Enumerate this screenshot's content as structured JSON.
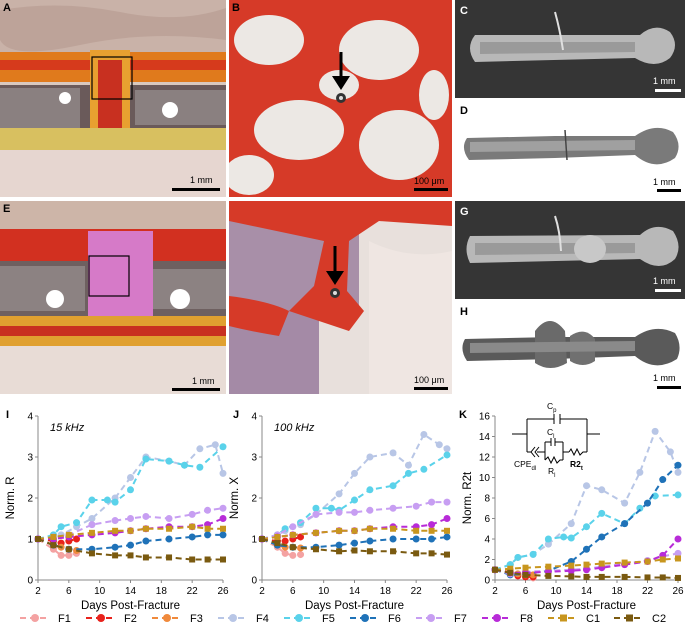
{
  "panels": {
    "A": {
      "label": "A",
      "scale": "1 mm"
    },
    "B": {
      "label": "B",
      "scale": "100 μm"
    },
    "C": {
      "label": "C",
      "scale": "1 mm"
    },
    "D": {
      "label": "D",
      "scale": "1 mm"
    },
    "E": {
      "label": "E",
      "scale": "1 mm"
    },
    "F": {
      "label": "",
      "scale": "100 μm"
    },
    "G": {
      "label": "G",
      "scale": "1 mm"
    },
    "H": {
      "label": "H",
      "scale": "1 mm"
    }
  },
  "colors": {
    "F1": "#f4a2a2",
    "F2": "#e8221c",
    "F3": "#f08a3c",
    "F4": "#b8c6e6",
    "F5": "#5ad2ea",
    "F6": "#1f72b8",
    "F7": "#c79ef2",
    "F8": "#b82bd8",
    "C1": "#c8961e",
    "C2": "#7a5a10"
  },
  "legend": [
    {
      "name": "F1",
      "style": "solid"
    },
    {
      "name": "F2",
      "style": "solid"
    },
    {
      "name": "F3",
      "style": "solid"
    },
    {
      "name": "F4",
      "style": "solid"
    },
    {
      "name": "F5",
      "style": "solid"
    },
    {
      "name": "F6",
      "style": "solid"
    },
    {
      "name": "F7",
      "style": "solid"
    },
    {
      "name": "F8",
      "style": "solid"
    },
    {
      "name": "C1",
      "style": "square"
    },
    {
      "name": "C2",
      "style": "square"
    }
  ],
  "circuit": {
    "cp": "C",
    "cp_sub": "p",
    "c1": "C",
    "c1_sub": "l",
    "cpe": "CPE",
    "cpe_sub": "dl",
    "r1": "R",
    "r1_sub": "l",
    "r2": "R2",
    "r2_sub": "t"
  },
  "chart_data": [
    {
      "panel": "I",
      "type": "line",
      "annotation": "15 kHz",
      "xlabel": "Days Post-Fracture",
      "ylabel": "Norm. R",
      "xlim": [
        2,
        26
      ],
      "ylim": [
        0,
        4
      ],
      "xticks": [
        2,
        6,
        10,
        14,
        18,
        22,
        26
      ],
      "yticks": [
        0,
        1,
        2,
        3,
        4
      ],
      "series": [
        {
          "name": "F1",
          "x": [
            2,
            4,
            5,
            6,
            7
          ],
          "y": [
            1.0,
            0.75,
            0.6,
            0.6,
            0.65
          ]
        },
        {
          "name": "F2",
          "x": [
            2,
            4,
            5,
            6,
            7
          ],
          "y": [
            1.0,
            0.95,
            0.9,
            0.95,
            1.0
          ]
        },
        {
          "name": "F3",
          "x": [
            2,
            4,
            5,
            6,
            7
          ],
          "y": [
            1.0,
            0.85,
            0.8,
            0.75,
            0.72
          ]
        },
        {
          "name": "F4",
          "x": [
            2,
            4,
            5,
            7,
            9,
            12,
            14,
            16,
            19,
            21,
            23,
            25,
            26
          ],
          "y": [
            1.0,
            1.0,
            1.1,
            1.3,
            1.5,
            2.0,
            2.5,
            3.0,
            2.9,
            2.8,
            3.2,
            3.3,
            2.6
          ]
        },
        {
          "name": "F5",
          "x": [
            2,
            4,
            5,
            7,
            9,
            11,
            12,
            14,
            16,
            19,
            21,
            23,
            26
          ],
          "y": [
            1.0,
            1.1,
            1.3,
            1.4,
            1.95,
            1.95,
            1.9,
            2.2,
            2.95,
            2.9,
            2.8,
            2.75,
            3.25
          ]
        },
        {
          "name": "F6",
          "x": [
            2,
            4,
            6,
            9,
            12,
            14,
            16,
            19,
            22,
            24,
            26
          ],
          "y": [
            1.0,
            0.85,
            0.75,
            0.75,
            0.8,
            0.85,
            0.95,
            1.0,
            1.05,
            1.1,
            1.1
          ]
        },
        {
          "name": "F7",
          "x": [
            2,
            4,
            6,
            9,
            12,
            14,
            16,
            19,
            22,
            24,
            26
          ],
          "y": [
            1.0,
            1.05,
            1.1,
            1.35,
            1.45,
            1.5,
            1.55,
            1.5,
            1.6,
            1.7,
            1.75
          ]
        },
        {
          "name": "F8",
          "x": [
            2,
            4,
            6,
            9,
            12,
            14,
            16,
            19,
            22,
            24,
            26
          ],
          "y": [
            1.0,
            1.0,
            1.05,
            1.1,
            1.15,
            1.2,
            1.25,
            1.3,
            1.3,
            1.35,
            1.5
          ]
        },
        {
          "name": "C1",
          "x": [
            2,
            4,
            6,
            9,
            12,
            14,
            16,
            19,
            22,
            24,
            26
          ],
          "y": [
            1.0,
            1.05,
            1.1,
            1.15,
            1.2,
            1.2,
            1.25,
            1.25,
            1.3,
            1.25,
            1.25
          ]
        },
        {
          "name": "C2",
          "x": [
            2,
            4,
            6,
            9,
            12,
            14,
            16,
            19,
            22,
            24,
            26
          ],
          "y": [
            1.0,
            0.85,
            0.75,
            0.65,
            0.6,
            0.6,
            0.55,
            0.55,
            0.5,
            0.5,
            0.5
          ]
        }
      ]
    },
    {
      "panel": "J",
      "type": "line",
      "annotation": "100 kHz",
      "xlabel": "Days Post-Fracture",
      "ylabel": "Norm. X",
      "xlim": [
        2,
        26
      ],
      "ylim": [
        0,
        4
      ],
      "xticks": [
        2,
        6,
        10,
        14,
        18,
        22,
        26
      ],
      "yticks": [
        0,
        1,
        2,
        3,
        4
      ],
      "series": [
        {
          "name": "F1",
          "x": [
            2,
            4,
            5,
            6,
            7
          ],
          "y": [
            1.0,
            0.8,
            0.65,
            0.6,
            0.62
          ]
        },
        {
          "name": "F2",
          "x": [
            2,
            4,
            5,
            6,
            7
          ],
          "y": [
            1.0,
            0.95,
            0.95,
            1.0,
            1.05
          ]
        },
        {
          "name": "F3",
          "x": [
            2,
            4,
            5,
            6,
            7
          ],
          "y": [
            1.0,
            0.85,
            0.8,
            0.8,
            0.78
          ]
        },
        {
          "name": "F4",
          "x": [
            2,
            4,
            5,
            7,
            9,
            12,
            14,
            16,
            19,
            21,
            23,
            25,
            26
          ],
          "y": [
            1.0,
            1.1,
            1.2,
            1.35,
            1.6,
            2.1,
            2.6,
            3.0,
            3.1,
            2.8,
            3.55,
            3.3,
            3.2
          ]
        },
        {
          "name": "F5",
          "x": [
            2,
            4,
            5,
            7,
            9,
            11,
            12,
            14,
            16,
            19,
            21,
            23,
            26
          ],
          "y": [
            1.0,
            1.1,
            1.25,
            1.4,
            1.75,
            1.75,
            1.7,
            1.95,
            2.2,
            2.3,
            2.6,
            2.7,
            3.05
          ]
        },
        {
          "name": "F6",
          "x": [
            2,
            4,
            6,
            9,
            12,
            14,
            16,
            19,
            22,
            24,
            26
          ],
          "y": [
            1.0,
            0.85,
            0.8,
            0.8,
            0.85,
            0.9,
            0.95,
            1.0,
            1.0,
            1.0,
            1.05
          ]
        },
        {
          "name": "F7",
          "x": [
            2,
            4,
            6,
            9,
            12,
            14,
            16,
            19,
            22,
            24,
            26
          ],
          "y": [
            1.0,
            1.1,
            1.3,
            1.6,
            1.65,
            1.65,
            1.7,
            1.75,
            1.8,
            1.9,
            1.9
          ]
        },
        {
          "name": "F8",
          "x": [
            2,
            4,
            6,
            9,
            12,
            14,
            16,
            19,
            22,
            24,
            26
          ],
          "y": [
            1.0,
            1.05,
            1.1,
            1.15,
            1.2,
            1.2,
            1.25,
            1.3,
            1.3,
            1.35,
            1.5
          ]
        },
        {
          "name": "C1",
          "x": [
            2,
            4,
            6,
            9,
            12,
            14,
            16,
            19,
            22,
            24,
            26
          ],
          "y": [
            1.0,
            1.05,
            1.1,
            1.15,
            1.2,
            1.2,
            1.25,
            1.25,
            1.2,
            1.2,
            1.2
          ]
        },
        {
          "name": "C2",
          "x": [
            2,
            4,
            6,
            9,
            12,
            14,
            16,
            19,
            22,
            24,
            26
          ],
          "y": [
            1.0,
            0.9,
            0.8,
            0.75,
            0.7,
            0.72,
            0.7,
            0.7,
            0.65,
            0.65,
            0.62
          ]
        }
      ]
    },
    {
      "panel": "K",
      "type": "line",
      "annotation": "",
      "xlabel": "Days Post-Fracture",
      "ylabel": "Norm. R2t",
      "xlim": [
        2,
        26
      ],
      "ylim": [
        0,
        16
      ],
      "xticks": [
        2,
        6,
        10,
        14,
        18,
        22,
        26
      ],
      "yticks": [
        0,
        2,
        4,
        6,
        8,
        10,
        12,
        14,
        16
      ],
      "series": [
        {
          "name": "F1",
          "x": [
            2,
            4,
            5,
            6,
            7
          ],
          "y": [
            1.0,
            1.0,
            0.5,
            0.3,
            0.2
          ]
        },
        {
          "name": "F2",
          "x": [
            2,
            4,
            5,
            6,
            7
          ],
          "y": [
            1.0,
            0.6,
            0.4,
            0.3,
            0.3
          ]
        },
        {
          "name": "F3",
          "x": [
            2,
            4,
            5,
            6,
            7
          ],
          "y": [
            1.0,
            0.8,
            0.6,
            0.5,
            0.5
          ]
        },
        {
          "name": "F4",
          "x": [
            2,
            4,
            5,
            7,
            9,
            12,
            14,
            16,
            19,
            21,
            23,
            25,
            26
          ],
          "y": [
            1.0,
            1.5,
            2.2,
            2.5,
            3.5,
            5.5,
            9.2,
            8.8,
            7.5,
            10.5,
            14.5,
            12.5,
            10.5
          ]
        },
        {
          "name": "F5",
          "x": [
            2,
            4,
            5,
            7,
            9,
            11,
            12,
            14,
            16,
            19,
            21,
            23,
            26
          ],
          "y": [
            1.0,
            1.5,
            2.2,
            2.5,
            4.0,
            4.2,
            4.1,
            5.2,
            6.5,
            5.5,
            7.0,
            8.2,
            8.3
          ]
        },
        {
          "name": "F6",
          "x": [
            2,
            4,
            6,
            9,
            12,
            14,
            16,
            19,
            22,
            24,
            26
          ],
          "y": [
            1.0,
            0.5,
            0.6,
            0.9,
            1.8,
            3.0,
            4.2,
            5.5,
            7.5,
            9.8,
            11.2
          ]
        },
        {
          "name": "F7",
          "x": [
            2,
            4,
            6,
            9,
            12,
            14,
            16,
            19,
            22,
            24,
            26
          ],
          "y": [
            1.0,
            0.6,
            0.8,
            0.9,
            1.0,
            1.1,
            1.3,
            1.6,
            1.9,
            2.3,
            2.6
          ]
        },
        {
          "name": "F8",
          "x": [
            2,
            4,
            6,
            9,
            12,
            14,
            16,
            19,
            22,
            24,
            26
          ],
          "y": [
            1.0,
            0.7,
            0.7,
            0.8,
            0.9,
            1.0,
            1.2,
            1.5,
            1.8,
            2.4,
            4.0
          ]
        },
        {
          "name": "C1",
          "x": [
            2,
            4,
            6,
            9,
            12,
            14,
            16,
            19,
            22,
            24,
            26
          ],
          "y": [
            1.0,
            1.1,
            1.2,
            1.3,
            1.4,
            1.5,
            1.6,
            1.7,
            1.8,
            2.0,
            2.1
          ]
        },
        {
          "name": "C2",
          "x": [
            2,
            4,
            6,
            9,
            12,
            14,
            16,
            19,
            22,
            24,
            26
          ],
          "y": [
            1.0,
            0.7,
            0.5,
            0.4,
            0.35,
            0.3,
            0.3,
            0.3,
            0.25,
            0.25,
            0.2
          ]
        }
      ]
    }
  ]
}
